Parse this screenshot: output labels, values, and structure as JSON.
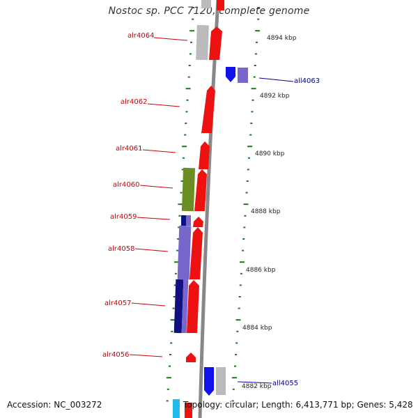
{
  "title": "Nostoc sp. PCC 7120, complete genome",
  "footer": {
    "accession": "Accession: NC_003272",
    "summary": "Topology: circular; Length: 6,413,771 bp; Genes: 5,428"
  },
  "colors": {
    "forward_gene": "#ee1111",
    "reverse_gene": "#1111ee",
    "forward_label": "#cc0000",
    "reverse_label": "#000099",
    "backbone": "#888888",
    "tick": "#1a7a1a",
    "cog_gray": "#bbbbbb",
    "cog_purple": "#7766cc",
    "cog_olive": "#6b8e23",
    "cog_navy": "#101080",
    "cog_cyan": "#22bbee"
  },
  "kbp_labels": [
    "4894 kbp",
    "4892 kbp",
    "4890 kbp",
    "4888 kbp",
    "4886 kbp",
    "4884 kbp",
    "4882 kbp"
  ],
  "forward_genes": [
    {
      "name": "alr4064"
    },
    {
      "name": "alr4062"
    },
    {
      "name": "alr4061"
    },
    {
      "name": "alr4060"
    },
    {
      "name": "alr4059"
    },
    {
      "name": "alr4058"
    },
    {
      "name": "alr4057"
    },
    {
      "name": "alr4056"
    }
  ],
  "reverse_genes": [
    {
      "name": "all4063"
    },
    {
      "name": "all4055"
    }
  ]
}
